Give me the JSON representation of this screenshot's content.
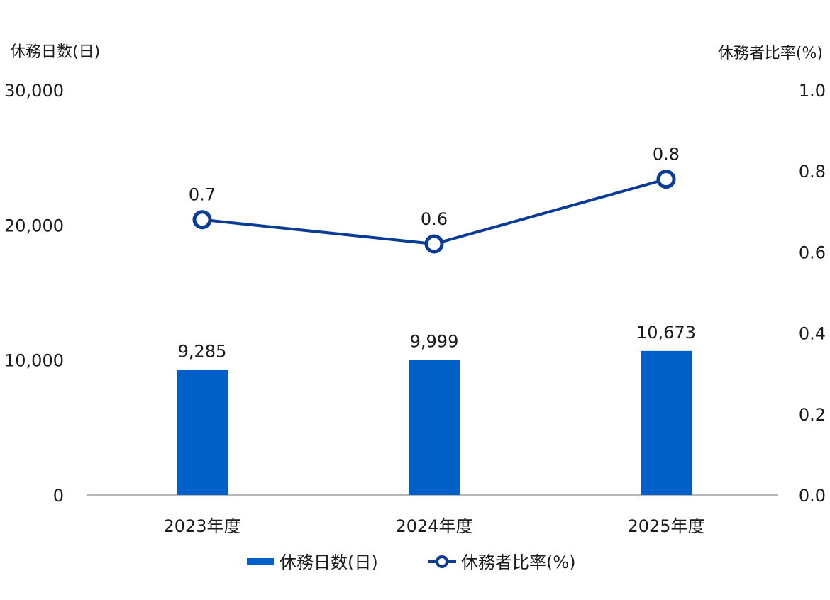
{
  "chart_data": {
    "type": "bar+line",
    "categories": [
      "2023年度",
      "2024年度",
      "2025年度"
    ],
    "y_left": {
      "label": "休務日数(日)",
      "ticks": [
        "30,000",
        "20,000",
        "10,000",
        "0"
      ],
      "lim": [
        0,
        30000
      ]
    },
    "y_right": {
      "label": "休務者比率(%)",
      "ticks": [
        "1.0",
        "0.8",
        "0.6",
        "0.4",
        "0.2",
        "0.0"
      ],
      "lim": [
        0,
        1.0
      ]
    },
    "series": [
      {
        "name": "休務日数(日)",
        "kind": "bar",
        "axis": "left",
        "color": "#0060C8",
        "values": [
          9285,
          9999,
          10673
        ],
        "labels": [
          "9,285",
          "9,999",
          "10,673"
        ]
      },
      {
        "name": "休務者比率(%)",
        "kind": "line",
        "axis": "right",
        "color": "#0A3C96",
        "values": [
          0.68,
          0.62,
          0.78
        ],
        "labels": [
          "0.7",
          "0.6",
          "0.8"
        ]
      }
    ],
    "legend": "bottom-center",
    "grid": false
  }
}
